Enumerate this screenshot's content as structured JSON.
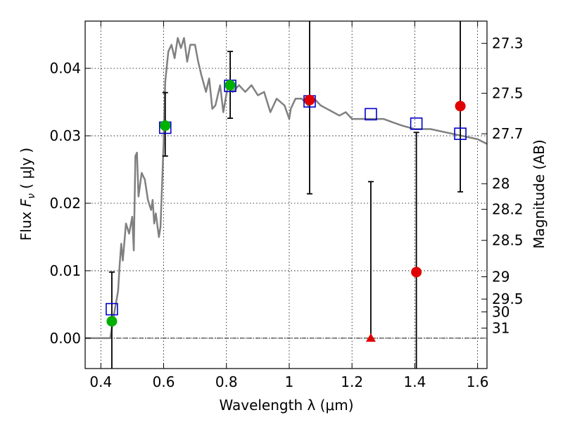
{
  "chart_data": {
    "type": "scatter",
    "xlabel": "Wavelength  λ (μm)",
    "ylabel_prefix": "Flux  ",
    "ylabel_math": "F",
    "ylabel_sub": "ν",
    "ylabel_suffix": "  ( μJy )",
    "ylabel_right": "Magnitude (AB)",
    "xlim": [
      0.35,
      1.63
    ],
    "ylim": [
      -0.0045,
      0.047
    ],
    "grid": true,
    "x_ticks": [
      0.4,
      0.6,
      0.8,
      1.0,
      1.2,
      1.4,
      1.6
    ],
    "x_tick_labels": [
      "0.4",
      "0.6",
      "0.8",
      "1",
      "1.2",
      "1.4",
      "1.6"
    ],
    "y_ticks": [
      0.0,
      0.01,
      0.02,
      0.03,
      0.04
    ],
    "y_tick_labels": [
      "0.00",
      "0.01",
      "0.02",
      "0.03",
      "0.04"
    ],
    "right_ticks": [
      {
        "label": "27.3",
        "flux": 0.0437
      },
      {
        "label": "27.5",
        "flux": 0.0363
      },
      {
        "label": "27.7",
        "flux": 0.0303
      },
      {
        "label": "28",
        "flux": 0.0229
      },
      {
        "label": "28.2",
        "flux": 0.0191
      },
      {
        "label": "28.5",
        "flux": 0.0145
      },
      {
        "label": "29",
        "flux": 0.0091
      },
      {
        "label": "29.5",
        "flux": 0.0058
      },
      {
        "label": "30",
        "flux": 0.0039
      },
      {
        "label": "31",
        "flux": 0.0015
      }
    ],
    "series": [
      {
        "name": "template SED",
        "kind": "line",
        "color": "#808080",
        "points": [
          [
            0.35,
            0.0
          ],
          [
            0.43,
            0.0
          ],
          [
            0.44,
            0.003
          ],
          [
            0.455,
            0.007
          ],
          [
            0.46,
            0.011
          ],
          [
            0.465,
            0.014
          ],
          [
            0.47,
            0.0115
          ],
          [
            0.48,
            0.017
          ],
          [
            0.49,
            0.0155
          ],
          [
            0.5,
            0.018
          ],
          [
            0.505,
            0.013
          ],
          [
            0.51,
            0.027
          ],
          [
            0.515,
            0.0275
          ],
          [
            0.52,
            0.021
          ],
          [
            0.53,
            0.0245
          ],
          [
            0.54,
            0.0235
          ],
          [
            0.55,
            0.0205
          ],
          [
            0.56,
            0.019
          ],
          [
            0.565,
            0.0205
          ],
          [
            0.57,
            0.017
          ],
          [
            0.575,
            0.0185
          ],
          [
            0.585,
            0.015
          ],
          [
            0.59,
            0.0165
          ],
          [
            0.6,
            0.029
          ],
          [
            0.605,
            0.038
          ],
          [
            0.615,
            0.0425
          ],
          [
            0.625,
            0.0435
          ],
          [
            0.635,
            0.0415
          ],
          [
            0.645,
            0.0445
          ],
          [
            0.655,
            0.043
          ],
          [
            0.665,
            0.0445
          ],
          [
            0.675,
            0.041
          ],
          [
            0.685,
            0.0435
          ],
          [
            0.7,
            0.0435
          ],
          [
            0.71,
            0.041
          ],
          [
            0.72,
            0.039
          ],
          [
            0.735,
            0.0365
          ],
          [
            0.745,
            0.0385
          ],
          [
            0.755,
            0.034
          ],
          [
            0.765,
            0.0345
          ],
          [
            0.78,
            0.0375
          ],
          [
            0.79,
            0.0335
          ],
          [
            0.805,
            0.0375
          ],
          [
            0.82,
            0.0365
          ],
          [
            0.84,
            0.0375
          ],
          [
            0.86,
            0.0365
          ],
          [
            0.88,
            0.0375
          ],
          [
            0.9,
            0.036
          ],
          [
            0.92,
            0.0365
          ],
          [
            0.94,
            0.0335
          ],
          [
            0.96,
            0.0355
          ],
          [
            0.985,
            0.0345
          ],
          [
            1.0,
            0.0325
          ],
          [
            1.005,
            0.034
          ],
          [
            1.02,
            0.0355
          ],
          [
            1.04,
            0.0355
          ],
          [
            1.06,
            0.0345
          ],
          [
            1.08,
            0.0355
          ],
          [
            1.1,
            0.0345
          ],
          [
            1.12,
            0.034
          ],
          [
            1.14,
            0.0335
          ],
          [
            1.16,
            0.033
          ],
          [
            1.18,
            0.0335
          ],
          [
            1.2,
            0.0325
          ],
          [
            1.22,
            0.0325
          ],
          [
            1.25,
            0.0325
          ],
          [
            1.28,
            0.0325
          ],
          [
            1.3,
            0.0325
          ],
          [
            1.33,
            0.032
          ],
          [
            1.36,
            0.0315
          ],
          [
            1.4,
            0.031
          ],
          [
            1.45,
            0.031
          ],
          [
            1.5,
            0.0305
          ],
          [
            1.55,
            0.03
          ],
          [
            1.6,
            0.0295
          ],
          [
            1.63,
            0.0288
          ]
        ]
      },
      {
        "name": "model photometry",
        "kind": "open-square",
        "color": "#0000cc",
        "points": [
          [
            0.435,
            0.0043
          ],
          [
            0.605,
            0.0312
          ],
          [
            0.812,
            0.0374
          ],
          [
            1.065,
            0.0351
          ],
          [
            1.26,
            0.0332
          ],
          [
            1.405,
            0.0318
          ],
          [
            1.545,
            0.0303
          ]
        ]
      },
      {
        "name": "detections",
        "kind": "filled-circle",
        "color": "#00b000",
        "points": [
          {
            "x": 0.435,
            "y": 0.0025,
            "err_low": -0.015,
            "err_high": 0.0098
          },
          {
            "x": 0.605,
            "y": 0.0315,
            "err_low": 0.027,
            "err_high": 0.0364
          },
          {
            "x": 0.812,
            "y": 0.0375,
            "err_low": 0.0326,
            "err_high": 0.0425
          }
        ]
      },
      {
        "name": "low-significance",
        "kind": "filled-circle",
        "color": "#e00000",
        "points": [
          {
            "x": 1.065,
            "y": 0.0353,
            "err_low": 0.0214,
            "err_high": 0.06
          },
          {
            "x": 1.405,
            "y": 0.0098,
            "err_low": -0.015,
            "err_high": 0.0305
          },
          {
            "x": 1.545,
            "y": 0.0344,
            "err_low": 0.0217,
            "err_high": 0.06
          }
        ]
      },
      {
        "name": "upper limit",
        "kind": "triangle",
        "color": "#e00000",
        "points": [
          {
            "x": 1.26,
            "y": 0.0,
            "err_low": 0.0,
            "err_high": 0.0232
          }
        ]
      }
    ]
  }
}
